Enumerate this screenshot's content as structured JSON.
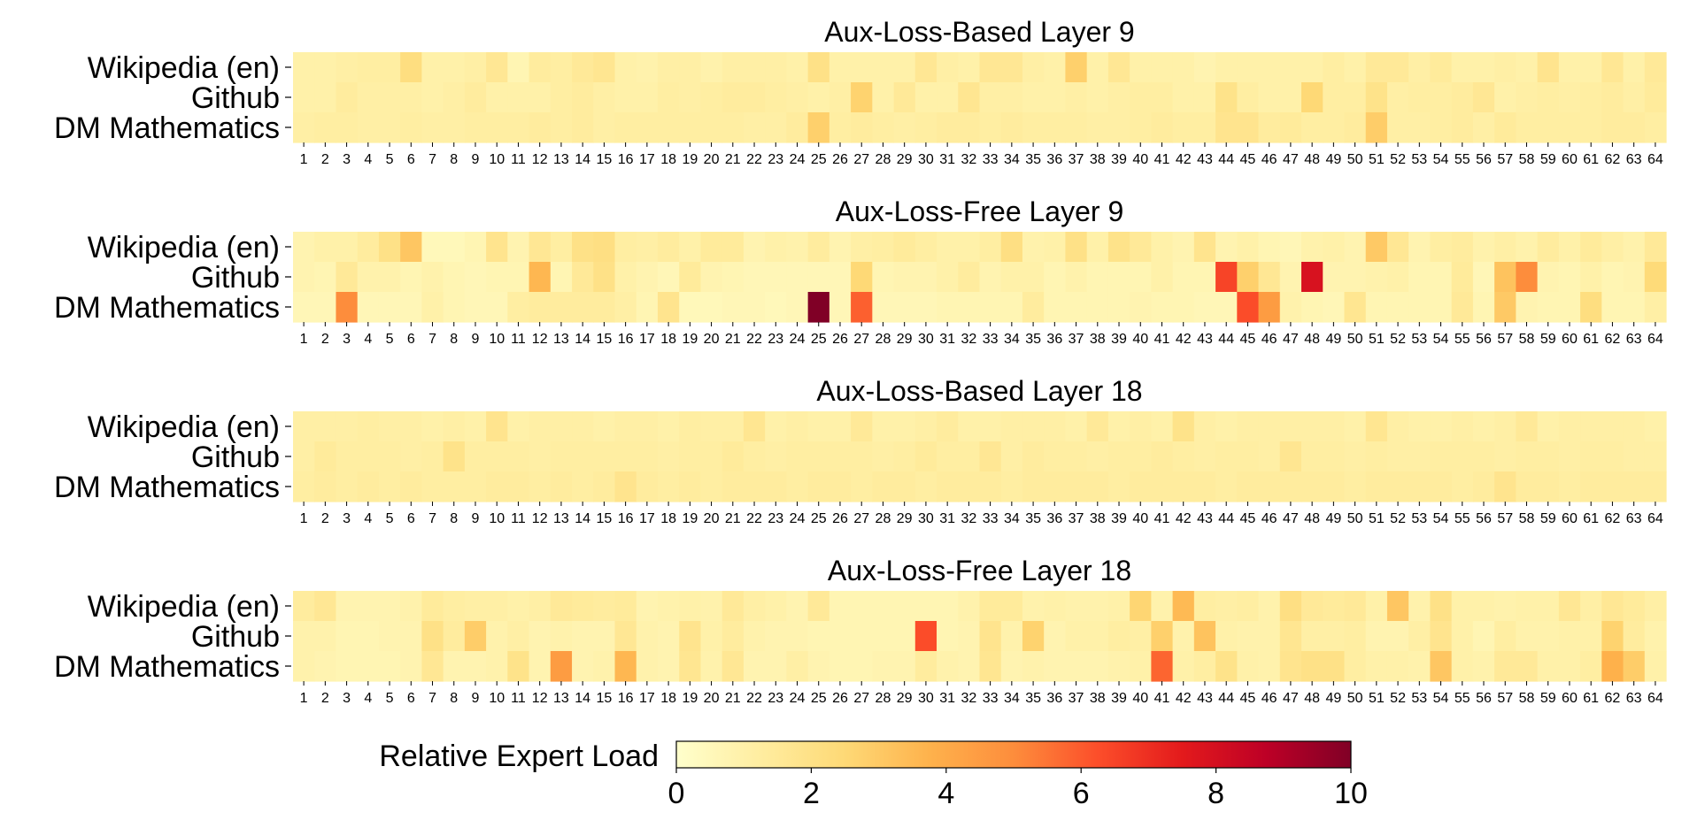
{
  "chart_data": [
    {
      "type": "heatmap",
      "title": "Aux-Loss-Based Layer 9",
      "rows": [
        "Wikipedia (en)",
        "Github",
        "DM Mathematics"
      ],
      "x_tick_labels": [
        "1",
        "2",
        "3",
        "4",
        "5",
        "6",
        "7",
        "8",
        "9",
        "10",
        "11",
        "12",
        "13",
        "14",
        "15",
        "16",
        "17",
        "18",
        "19",
        "20",
        "21",
        "22",
        "23",
        "24",
        "25",
        "26",
        "27",
        "28",
        "29",
        "30",
        "31",
        "32",
        "33",
        "34",
        "35",
        "36",
        "37",
        "38",
        "39",
        "40",
        "41",
        "42",
        "43",
        "44",
        "45",
        "46",
        "47",
        "48",
        "49",
        "50",
        "51",
        "52",
        "53",
        "54",
        "55",
        "56",
        "57",
        "58",
        "59",
        "60",
        "61",
        "62",
        "63",
        "64"
      ],
      "values": [
        [
          1.0,
          1.0,
          1.1,
          1.2,
          1.2,
          2.2,
          1.0,
          1.0,
          1.1,
          1.6,
          0.7,
          1.3,
          1.2,
          1.5,
          1.7,
          1.0,
          0.9,
          1.1,
          1.1,
          0.9,
          1.1,
          1.1,
          1.1,
          1.0,
          2.0,
          1.0,
          1.0,
          1.0,
          1.0,
          1.6,
          1.1,
          1.0,
          1.6,
          1.6,
          1.1,
          1.0,
          2.8,
          1.0,
          1.6,
          1.0,
          1.0,
          1.0,
          0.8,
          1.0,
          1.0,
          1.0,
          1.0,
          1.0,
          1.2,
          1.0,
          1.5,
          1.5,
          1.1,
          1.4,
          1.0,
          1.0,
          1.1,
          1.0,
          1.8,
          1.0,
          1.0,
          1.6,
          1.0,
          1.5
        ],
        [
          1.0,
          1.0,
          1.3,
          1.1,
          1.1,
          1.1,
          1.0,
          1.1,
          1.3,
          1.0,
          1.0,
          1.0,
          1.2,
          1.3,
          1.1,
          1.0,
          1.0,
          1.2,
          1.1,
          1.2,
          1.3,
          1.3,
          1.2,
          1.1,
          1.0,
          1.1,
          2.7,
          1.0,
          1.5,
          1.0,
          1.0,
          1.7,
          1.1,
          1.1,
          1.0,
          1.0,
          1.1,
          1.0,
          1.1,
          1.2,
          1.2,
          1.0,
          1.0,
          1.9,
          1.2,
          1.0,
          1.0,
          2.5,
          1.2,
          1.2,
          1.9,
          1.1,
          1.2,
          1.2,
          1.3,
          1.6,
          1.0,
          1.1,
          1.2,
          1.1,
          1.2,
          1.3,
          1.1,
          1.4
        ],
        [
          1.1,
          1.2,
          1.2,
          1.1,
          1.1,
          1.2,
          1.1,
          1.1,
          1.2,
          1.2,
          1.2,
          1.3,
          1.2,
          1.3,
          1.1,
          1.2,
          1.2,
          1.2,
          1.2,
          1.2,
          1.2,
          1.1,
          1.1,
          1.3,
          2.8,
          1.2,
          1.3,
          1.2,
          1.1,
          1.2,
          1.3,
          1.3,
          1.2,
          1.3,
          1.2,
          1.2,
          1.2,
          1.1,
          1.1,
          1.2,
          1.3,
          1.2,
          1.2,
          1.8,
          1.8,
          1.3,
          1.4,
          1.2,
          1.2,
          1.3,
          2.9,
          1.1,
          1.1,
          1.2,
          1.3,
          1.1,
          1.4,
          1.2,
          1.2,
          1.2,
          1.2,
          1.3,
          1.3,
          1.2
        ]
      ]
    },
    {
      "type": "heatmap",
      "title": "Aux-Loss-Free Layer 9",
      "rows": [
        "Wikipedia (en)",
        "Github",
        "DM Mathematics"
      ],
      "x_tick_labels": [
        "1",
        "2",
        "3",
        "4",
        "5",
        "6",
        "7",
        "8",
        "9",
        "10",
        "11",
        "12",
        "13",
        "14",
        "15",
        "16",
        "17",
        "18",
        "19",
        "20",
        "21",
        "22",
        "23",
        "24",
        "25",
        "26",
        "27",
        "28",
        "29",
        "30",
        "31",
        "32",
        "33",
        "34",
        "35",
        "36",
        "37",
        "38",
        "39",
        "40",
        "41",
        "42",
        "43",
        "44",
        "45",
        "46",
        "47",
        "48",
        "49",
        "50",
        "51",
        "52",
        "53",
        "54",
        "55",
        "56",
        "57",
        "58",
        "59",
        "60",
        "61",
        "62",
        "63",
        "64"
      ],
      "values": [
        [
          0.8,
          1.0,
          1.0,
          1.3,
          2.0,
          3.1,
          0.5,
          0.5,
          0.7,
          1.8,
          0.8,
          1.6,
          1.2,
          2.0,
          2.1,
          1.2,
          1.1,
          1.3,
          1.0,
          1.4,
          1.4,
          0.8,
          1.0,
          0.9,
          1.3,
          0.8,
          1.1,
          1.2,
          1.4,
          1.2,
          1.0,
          1.0,
          1.2,
          2.1,
          0.9,
          1.0,
          2.0,
          1.0,
          1.9,
          1.5,
          1.0,
          0.8,
          1.8,
          0.8,
          1.0,
          0.7,
          0.6,
          0.9,
          1.0,
          0.8,
          3.0,
          1.6,
          0.8,
          1.2,
          1.3,
          0.9,
          1.1,
          0.9,
          1.3,
          1.0,
          1.4,
          1.1,
          0.9,
          1.5
        ],
        [
          0.8,
          0.7,
          1.5,
          0.9,
          0.9,
          0.7,
          0.9,
          0.7,
          0.6,
          0.7,
          0.7,
          3.6,
          0.7,
          1.5,
          2.0,
          1.0,
          0.8,
          0.6,
          1.4,
          0.8,
          0.7,
          0.6,
          0.6,
          0.6,
          0.6,
          0.6,
          2.5,
          0.7,
          0.8,
          0.8,
          1.0,
          1.3,
          0.8,
          1.0,
          1.0,
          0.7,
          0.9,
          0.7,
          0.7,
          0.7,
          1.0,
          0.7,
          0.7,
          6.5,
          2.8,
          1.6,
          0.8,
          7.9,
          0.8,
          0.8,
          0.9,
          1.0,
          0.7,
          0.7,
          1.4,
          0.6,
          3.2,
          5.0,
          0.8,
          0.7,
          1.0,
          0.7,
          0.8,
          2.4
        ],
        [
          0.6,
          0.6,
          5.0,
          0.6,
          0.6,
          0.6,
          1.0,
          0.7,
          0.6,
          0.6,
          1.2,
          1.3,
          1.3,
          1.3,
          1.3,
          1.1,
          0.7,
          1.8,
          0.5,
          0.5,
          0.6,
          0.6,
          0.5,
          0.6,
          10.0,
          0.6,
          5.9,
          0.6,
          0.6,
          0.6,
          0.7,
          0.7,
          0.7,
          0.7,
          1.3,
          0.7,
          0.7,
          0.7,
          0.7,
          0.8,
          0.7,
          0.7,
          0.6,
          0.6,
          6.3,
          4.5,
          0.9,
          0.7,
          0.6,
          1.7,
          0.7,
          0.7,
          0.7,
          0.7,
          1.5,
          0.7,
          3.0,
          0.8,
          0.7,
          0.7,
          2.2,
          0.7,
          0.7,
          1.1
        ]
      ]
    },
    {
      "type": "heatmap",
      "title": "Aux-Loss-Based Layer 18",
      "rows": [
        "Wikipedia (en)",
        "Github",
        "DM Mathematics"
      ],
      "x_tick_labels": [
        "1",
        "2",
        "3",
        "4",
        "5",
        "6",
        "7",
        "8",
        "9",
        "10",
        "11",
        "12",
        "13",
        "14",
        "15",
        "16",
        "17",
        "18",
        "19",
        "20",
        "21",
        "22",
        "23",
        "24",
        "25",
        "26",
        "27",
        "28",
        "29",
        "30",
        "31",
        "32",
        "33",
        "34",
        "35",
        "36",
        "37",
        "38",
        "39",
        "40",
        "41",
        "42",
        "43",
        "44",
        "45",
        "46",
        "47",
        "48",
        "49",
        "50",
        "51",
        "52",
        "53",
        "54",
        "55",
        "56",
        "57",
        "58",
        "59",
        "60",
        "61",
        "62",
        "63",
        "64"
      ],
      "values": [
        [
          1.1,
          1.1,
          1.1,
          1.2,
          1.1,
          1.1,
          1.0,
          1.1,
          1.0,
          1.8,
          1.0,
          1.1,
          1.1,
          1.1,
          1.0,
          1.1,
          1.1,
          1.0,
          1.2,
          1.1,
          1.1,
          1.7,
          1.0,
          1.1,
          1.0,
          1.0,
          1.5,
          1.0,
          1.0,
          1.1,
          1.3,
          1.0,
          1.0,
          1.1,
          1.1,
          1.1,
          1.0,
          1.5,
          1.0,
          1.1,
          1.0,
          1.9,
          1.1,
          1.0,
          1.1,
          1.1,
          1.1,
          1.1,
          1.1,
          1.0,
          1.7,
          1.1,
          1.0,
          1.0,
          1.1,
          1.0,
          1.1,
          1.5,
          1.0,
          1.1,
          1.1,
          1.1,
          1.1,
          1.0
        ],
        [
          1.1,
          1.4,
          1.2,
          1.2,
          1.2,
          1.1,
          1.2,
          1.9,
          1.2,
          1.2,
          1.2,
          1.1,
          1.2,
          1.2,
          1.2,
          1.2,
          1.2,
          1.1,
          1.2,
          1.2,
          1.4,
          1.2,
          1.1,
          1.2,
          1.2,
          1.2,
          1.2,
          1.1,
          1.2,
          1.4,
          1.2,
          1.2,
          1.6,
          1.1,
          1.3,
          1.2,
          1.2,
          1.1,
          1.2,
          1.2,
          1.3,
          1.2,
          1.1,
          1.2,
          1.2,
          1.1,
          1.7,
          1.2,
          1.2,
          1.1,
          1.2,
          1.1,
          1.1,
          1.2,
          1.2,
          1.2,
          1.1,
          1.2,
          1.2,
          1.1,
          1.2,
          1.2,
          1.1,
          1.1
        ],
        [
          1.2,
          1.3,
          1.2,
          1.3,
          1.2,
          1.3,
          1.2,
          1.2,
          1.2,
          1.3,
          1.3,
          1.2,
          1.3,
          1.2,
          1.3,
          1.8,
          1.3,
          1.2,
          1.3,
          1.2,
          1.3,
          1.3,
          1.3,
          1.2,
          1.3,
          1.3,
          1.2,
          1.3,
          1.3,
          1.2,
          1.3,
          1.3,
          1.3,
          1.2,
          1.3,
          1.3,
          1.3,
          1.3,
          1.2,
          1.3,
          1.3,
          1.3,
          1.3,
          1.2,
          1.3,
          1.3,
          1.3,
          1.3,
          1.3,
          1.2,
          1.3,
          1.3,
          1.3,
          1.3,
          1.2,
          1.3,
          1.8,
          1.3,
          1.3,
          1.2,
          1.3,
          1.3,
          1.3,
          1.3
        ]
      ]
    },
    {
      "type": "heatmap",
      "title": "Aux-Loss-Free Layer 18",
      "rows": [
        "Wikipedia (en)",
        "Github",
        "DM Mathematics"
      ],
      "x_tick_labels": [
        "1",
        "2",
        "3",
        "4",
        "5",
        "6",
        "7",
        "8",
        "9",
        "10",
        "11",
        "12",
        "13",
        "14",
        "15",
        "16",
        "17",
        "18",
        "19",
        "20",
        "21",
        "22",
        "23",
        "24",
        "25",
        "26",
        "27",
        "28",
        "29",
        "30",
        "31",
        "32",
        "33",
        "34",
        "35",
        "36",
        "37",
        "38",
        "39",
        "40",
        "41",
        "42",
        "43",
        "44",
        "45",
        "46",
        "47",
        "48",
        "49",
        "50",
        "51",
        "52",
        "53",
        "54",
        "55",
        "56",
        "57",
        "58",
        "59",
        "60",
        "61",
        "62",
        "63",
        "64"
      ],
      "values": [
        [
          1.3,
          1.6,
          0.8,
          0.8,
          0.8,
          0.9,
          1.4,
          1.2,
          1.1,
          1.1,
          1.0,
          1.1,
          1.5,
          1.4,
          1.3,
          1.4,
          0.8,
          0.9,
          1.0,
          0.9,
          1.5,
          1.1,
          1.0,
          0.8,
          1.5,
          0.7,
          0.7,
          0.7,
          0.7,
          0.7,
          0.7,
          0.9,
          1.4,
          1.4,
          0.9,
          1.0,
          0.9,
          0.9,
          1.0,
          2.6,
          0.9,
          3.5,
          1.2,
          1.1,
          1.2,
          0.9,
          2.1,
          1.5,
          1.4,
          1.5,
          1.0,
          3.1,
          0.9,
          2.0,
          1.0,
          1.0,
          0.9,
          1.0,
          1.0,
          1.6,
          1.1,
          1.6,
          1.4,
          1.1
        ],
        [
          0.9,
          0.9,
          0.7,
          0.7,
          0.8,
          0.8,
          2.0,
          1.3,
          2.9,
          0.9,
          1.1,
          0.8,
          0.9,
          0.8,
          0.8,
          1.6,
          0.9,
          0.8,
          1.8,
          1.0,
          1.3,
          0.9,
          0.8,
          0.8,
          0.7,
          0.7,
          0.7,
          0.7,
          0.7,
          6.3,
          0.7,
          0.8,
          1.8,
          0.9,
          2.7,
          0.8,
          1.0,
          1.0,
          1.2,
          1.1,
          2.8,
          0.9,
          3.2,
          1.0,
          0.9,
          0.9,
          1.7,
          1.1,
          1.1,
          1.2,
          0.8,
          0.8,
          1.1,
          1.8,
          1.0,
          0.7,
          1.2,
          0.9,
          0.9,
          1.0,
          1.0,
          2.7,
          1.3,
          0.9
        ],
        [
          0.9,
          0.8,
          0.7,
          0.7,
          0.7,
          0.8,
          1.6,
          0.8,
          0.8,
          0.9,
          1.9,
          0.8,
          4.5,
          0.8,
          0.9,
          3.6,
          0.9,
          0.8,
          1.7,
          0.9,
          1.6,
          0.8,
          0.8,
          1.1,
          0.8,
          0.7,
          0.7,
          0.8,
          0.8,
          1.3,
          0.9,
          0.8,
          1.7,
          0.8,
          0.9,
          0.8,
          0.8,
          0.8,
          0.9,
          1.0,
          5.8,
          1.0,
          1.2,
          1.9,
          1.0,
          0.9,
          1.8,
          2.0,
          2.0,
          1.2,
          1.0,
          1.0,
          0.9,
          3.1,
          1.0,
          0.9,
          1.5,
          1.5,
          1.0,
          1.0,
          1.2,
          3.8,
          2.9,
          1.0
        ]
      ]
    }
  ],
  "colorbar": {
    "label": "Relative Expert Load",
    "min": 0,
    "max": 10,
    "ticks": [
      "0",
      "2",
      "4",
      "6",
      "8",
      "10"
    ],
    "colormap": "YlOrRd",
    "colors": [
      "#ffffcc",
      "#ffeda0",
      "#fed976",
      "#feb24c",
      "#fd8d3c",
      "#fc4e2a",
      "#e31a1c",
      "#bd0026",
      "#800026"
    ]
  }
}
